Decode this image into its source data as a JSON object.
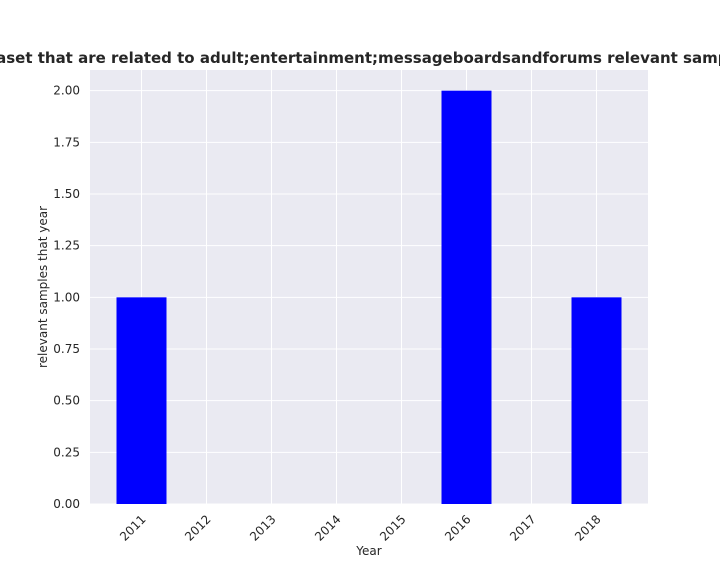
{
  "chart_data": {
    "type": "bar",
    "title": "Number of samples in the dataset that are related to adult;entertainment;messageboardsandforums relevant samples that year in privacy policies",
    "xlabel": "Year",
    "ylabel": "relevant samples that year",
    "categories": [
      "2011",
      "2012",
      "2013",
      "2014",
      "2015",
      "2016",
      "2017",
      "2018"
    ],
    "values": [
      1,
      0,
      0,
      0,
      0,
      2,
      0,
      1
    ],
    "ylim": [
      0,
      2.1
    ],
    "yticks": [
      "0.00",
      "0.25",
      "0.50",
      "0.75",
      "1.00",
      "1.25",
      "1.50",
      "1.75",
      "2.00"
    ],
    "grid": true,
    "bar_color": "#0000ff",
    "background_color": "#eaeaf2"
  }
}
